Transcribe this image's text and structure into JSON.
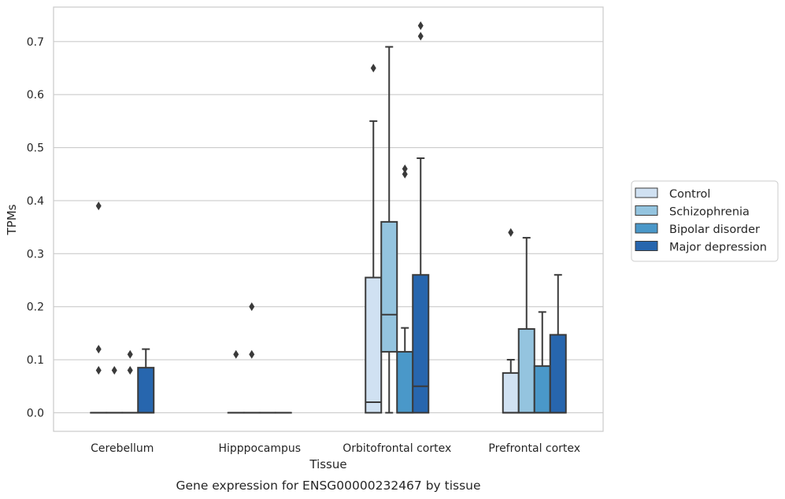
{
  "caption": "Gene expression for ENSG00000232467 by tissue",
  "colors": {
    "Control": "#d0e1f2",
    "Schizophrenia": "#94c4df",
    "Bipolar disorder": "#4a98c9",
    "Major depression": "#2766ae",
    "edge": "#3a3a3a",
    "grid": "#cccccc",
    "frame": "#cccccc"
  },
  "chart_data": {
    "type": "box",
    "xlabel": "Tissue",
    "ylabel": "TPMs",
    "ylim": [
      -0.035,
      0.765
    ],
    "yticks": [
      0.0,
      0.1,
      0.2,
      0.3,
      0.4,
      0.5,
      0.6,
      0.7
    ],
    "ytick_labels": [
      "0.0",
      "0.1",
      "0.2",
      "0.3",
      "0.4",
      "0.5",
      "0.6",
      "0.7"
    ],
    "grid": "horizontal",
    "legend_position": "right",
    "categories": [
      "Cerebellum",
      "Hipppocampus",
      "Orbitofrontal cortex",
      "Prefrontal cortex"
    ],
    "series": [
      {
        "name": "Control",
        "boxes": [
          {
            "q1": 0,
            "median": 0,
            "q3": 0,
            "whislo": 0,
            "whishi": 0,
            "fliers": [
              0.39,
              0.12,
              0.08
            ]
          },
          {
            "q1": 0,
            "median": 0,
            "q3": 0,
            "whislo": 0,
            "whishi": 0,
            "fliers": [
              0.11
            ]
          },
          {
            "q1": 0,
            "median": 0.02,
            "q3": 0.255,
            "whislo": 0,
            "whishi": 0.55,
            "fliers": [
              0.65
            ]
          },
          {
            "q1": 0,
            "median": 0,
            "q3": 0.075,
            "whislo": 0,
            "whishi": 0.1,
            "fliers": [
              0.34
            ]
          }
        ]
      },
      {
        "name": "Schizophrenia",
        "boxes": [
          {
            "q1": 0,
            "median": 0,
            "q3": 0,
            "whislo": 0,
            "whishi": 0,
            "fliers": [
              0.08
            ]
          },
          {
            "q1": 0,
            "median": 0,
            "q3": 0,
            "whislo": 0,
            "whishi": 0,
            "fliers": [
              0.2,
              0.11
            ]
          },
          {
            "q1": 0.115,
            "median": 0.185,
            "q3": 0.36,
            "whislo": 0,
            "whishi": 0.69,
            "fliers": []
          },
          {
            "q1": 0,
            "median": 0,
            "q3": 0.158,
            "whislo": 0,
            "whishi": 0.33,
            "fliers": []
          }
        ]
      },
      {
        "name": "Bipolar disorder",
        "boxes": [
          {
            "q1": 0,
            "median": 0,
            "q3": 0,
            "whislo": 0,
            "whishi": 0,
            "fliers": [
              0.11,
              0.08
            ]
          },
          {
            "q1": 0,
            "median": 0,
            "q3": 0,
            "whislo": 0,
            "whishi": 0,
            "fliers": []
          },
          {
            "q1": 0,
            "median": 0,
            "q3": 0.115,
            "whislo": 0,
            "whishi": 0.16,
            "fliers": [
              0.46,
              0.45
            ]
          },
          {
            "q1": 0,
            "median": 0,
            "q3": 0.088,
            "whislo": 0,
            "whishi": 0.19,
            "fliers": []
          }
        ]
      },
      {
        "name": "Major depression",
        "boxes": [
          {
            "q1": 0,
            "median": 0,
            "q3": 0.085,
            "whislo": 0,
            "whishi": 0.12,
            "fliers": []
          },
          {
            "q1": 0,
            "median": 0,
            "q3": 0,
            "whislo": 0,
            "whishi": 0,
            "fliers": []
          },
          {
            "q1": 0,
            "median": 0.05,
            "q3": 0.26,
            "whislo": 0,
            "whishi": 0.48,
            "fliers": [
              0.73,
              0.71
            ]
          },
          {
            "q1": 0,
            "median": 0,
            "q3": 0.147,
            "whislo": 0,
            "whishi": 0.26,
            "fliers": []
          }
        ]
      }
    ]
  }
}
